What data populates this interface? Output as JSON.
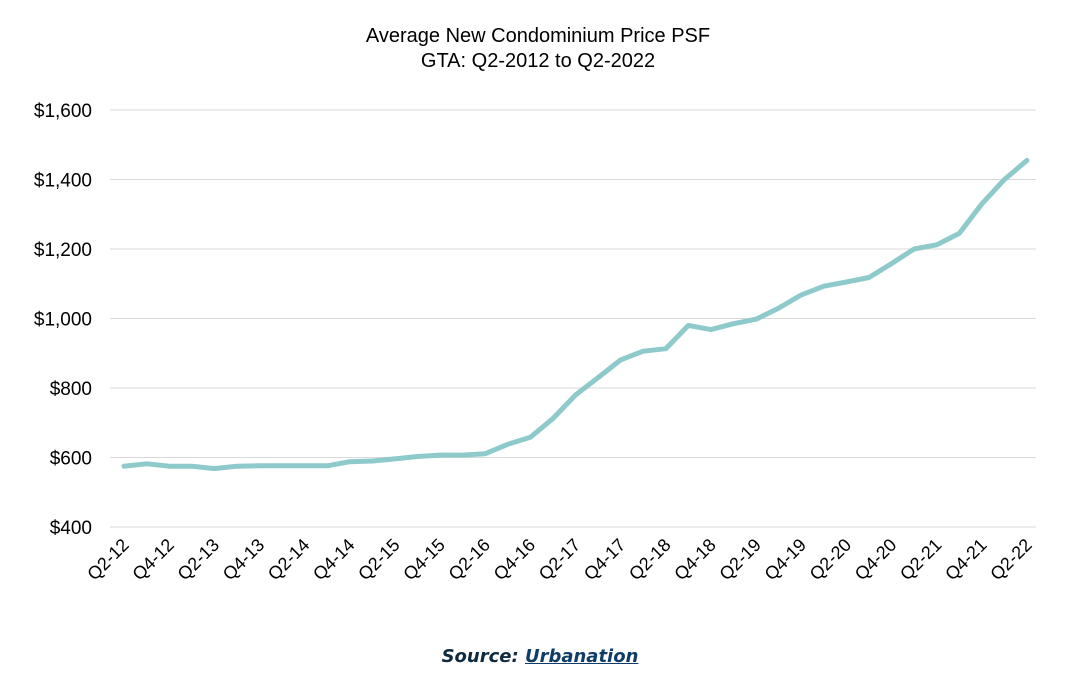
{
  "chart_data": {
    "type": "line",
    "title": "Average New Condominium Price PSF",
    "subtitle": "GTA: Q2-2012 to Q2-2022",
    "xlabel": "",
    "ylabel": "",
    "ylim": [
      400,
      1600
    ],
    "y_ticks": [
      400,
      600,
      800,
      1000,
      1200,
      1400,
      1600
    ],
    "y_tick_labels": [
      "$400",
      "$600",
      "$800",
      "$1,000",
      "$1,200",
      "$1,400",
      "$1,600"
    ],
    "grid": "horizontal",
    "legend": "none",
    "x_tick_labels": [
      "Q2-12",
      "Q4-12",
      "Q2-13",
      "Q4-13",
      "Q2-14",
      "Q4-14",
      "Q2-15",
      "Q4-15",
      "Q2-16",
      "Q4-16",
      "Q2-17",
      "Q4-17",
      "Q2-18",
      "Q4-18",
      "Q2-19",
      "Q4-19",
      "Q2-20",
      "Q4-20",
      "Q2-21",
      "Q4-21",
      "Q2-22"
    ],
    "categories": [
      "Q2-12",
      "Q3-12",
      "Q4-12",
      "Q1-13",
      "Q2-13",
      "Q3-13",
      "Q4-13",
      "Q1-14",
      "Q2-14",
      "Q3-14",
      "Q4-14",
      "Q1-15",
      "Q2-15",
      "Q3-15",
      "Q4-15",
      "Q1-16",
      "Q2-16",
      "Q3-16",
      "Q4-16",
      "Q1-17",
      "Q2-17",
      "Q3-17",
      "Q4-17",
      "Q1-18",
      "Q2-18",
      "Q3-18",
      "Q4-18",
      "Q1-19",
      "Q2-19",
      "Q3-19",
      "Q4-19",
      "Q1-20",
      "Q2-20",
      "Q3-20",
      "Q4-20",
      "Q1-21",
      "Q2-21",
      "Q3-21",
      "Q4-21",
      "Q1-22",
      "Q2-22"
    ],
    "series": [
      {
        "name": "",
        "color": "#8ecacb",
        "values": [
          575,
          582,
          575,
          575,
          568,
          575,
          576,
          576,
          576,
          576,
          588,
          590,
          596,
          603,
          607,
          607,
          611,
          638,
          658,
          712,
          780,
          830,
          881,
          906,
          913,
          980,
          968,
          985,
          998,
          1030,
          1068,
          1093,
          1105,
          1118,
          1158,
          1200,
          1212,
          1245,
          1330,
          1400,
          1455
        ]
      }
    ]
  },
  "source": {
    "label": "Source: ",
    "link_text": "Urbanation"
  }
}
